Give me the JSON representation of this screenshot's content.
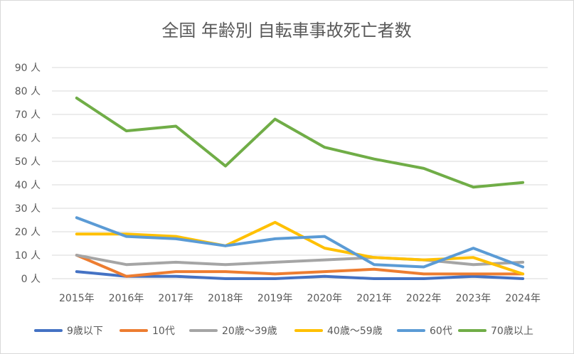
{
  "chart_data": {
    "type": "line",
    "title": "全国 年齢別 自転車事故死亡者数",
    "xlabel": "",
    "ylabel": "",
    "categories": [
      "2015年",
      "2016年",
      "2017年",
      "2018年",
      "2019年",
      "2020年",
      "2021年",
      "2022年",
      "2023年",
      "2024年"
    ],
    "y_tick_labels": [
      "0 人",
      "10 人",
      "20 人",
      "30 人",
      "40 人",
      "50 人",
      "60 人",
      "70 人",
      "80 人",
      "90 人"
    ],
    "ylim": [
      0,
      90
    ],
    "grid": true,
    "legend_position": "bottom",
    "series": [
      {
        "name": "9歳以下",
        "color": "#4472c4",
        "values": [
          3,
          1,
          1,
          0,
          0,
          1,
          0,
          0,
          1,
          0
        ]
      },
      {
        "name": "10代",
        "color": "#ed7d31",
        "values": [
          10,
          1,
          3,
          3,
          2,
          3,
          4,
          2,
          2,
          2
        ]
      },
      {
        "name": "20歳～39歳",
        "color": "#a5a5a5",
        "values": [
          10,
          6,
          7,
          6,
          7,
          8,
          9,
          8,
          6,
          7
        ]
      },
      {
        "name": "40歳～59歳",
        "color": "#ffc000",
        "values": [
          19,
          19,
          18,
          14,
          24,
          13,
          9,
          8,
          9,
          2
        ]
      },
      {
        "name": "60代",
        "color": "#5b9bd5",
        "values": [
          26,
          18,
          17,
          14,
          17,
          18,
          6,
          5,
          13,
          5
        ]
      },
      {
        "name": "70歳以上",
        "color": "#70ad47",
        "values": [
          77,
          63,
          65,
          48,
          68,
          56,
          51,
          47,
          39,
          41
        ]
      }
    ]
  }
}
